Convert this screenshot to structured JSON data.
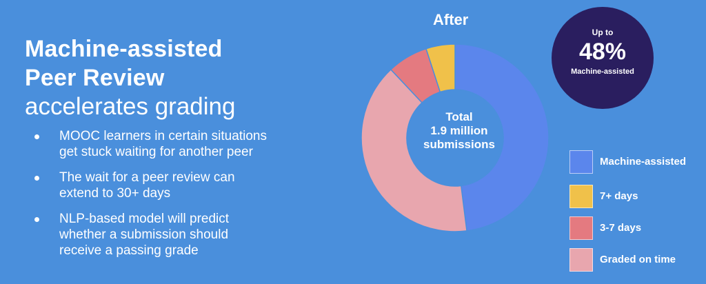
{
  "slide": {
    "title_bold_1": "Machine-assisted",
    "title_bold_2": "Peer Review",
    "title_light": "accelerates grading",
    "bullets": [
      {
        "line1": "MOOC learners in certain situations",
        "line2": "get stuck waiting for another peer"
      },
      {
        "line1": "The wait for a peer review can",
        "line2": "extend to 30+ days"
      },
      {
        "line1": "NLP-based model will predict",
        "line2": "whether a submission should",
        "line3": "receive a passing grade"
      }
    ]
  },
  "badge": {
    "top": "Up to",
    "value": "48%",
    "bottom": "Machine-assisted"
  },
  "chart_data": {
    "type": "pie",
    "title": "After",
    "center_label": [
      "Total",
      "1.9 million",
      "submissions"
    ],
    "slices": [
      {
        "label": "Machine-assisted",
        "value": 48,
        "color": "#5b86ec"
      },
      {
        "label": "Graded on time",
        "value": 40,
        "color": "#e8a6ae"
      },
      {
        "label": "3-7 days",
        "value": 7,
        "color": "#e47a80"
      },
      {
        "label": "7+ days",
        "value": 5,
        "color": "#f0c14a"
      }
    ],
    "legend": [
      {
        "label": "Machine-assisted",
        "color": "#5b86ec"
      },
      {
        "label": "7+ days",
        "color": "#f0c14a"
      },
      {
        "label": "3-7 days",
        "color": "#e47a80"
      },
      {
        "label": "Graded on time",
        "color": "#e8a6ae"
      }
    ],
    "legend_position": "right"
  }
}
